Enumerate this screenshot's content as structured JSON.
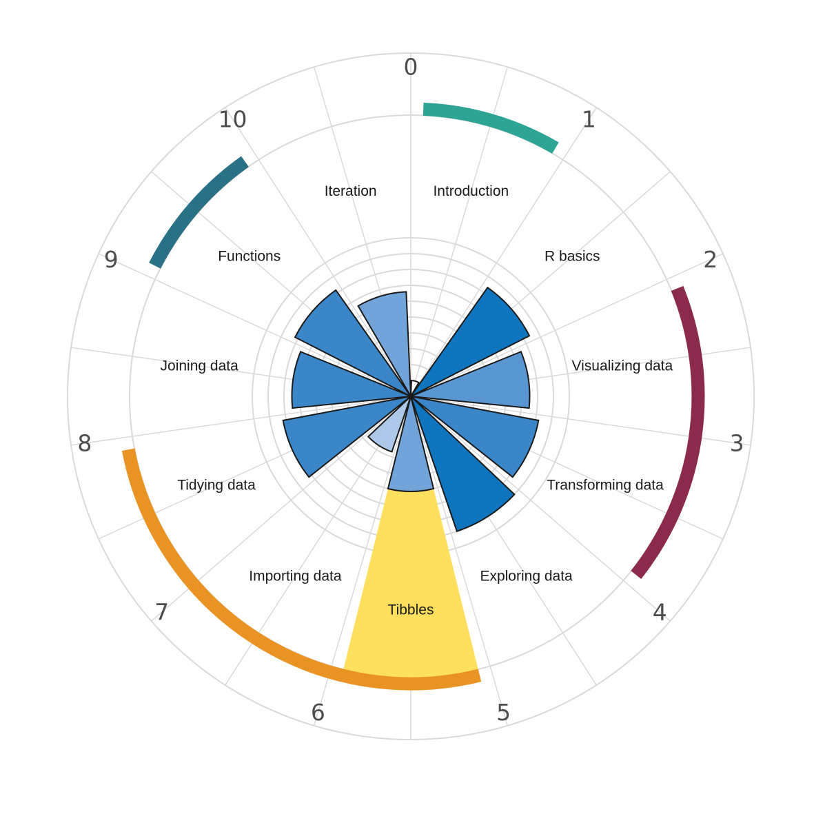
{
  "chart_data": {
    "type": "polar-bar",
    "title": "",
    "categories": [
      "Introduction",
      "R basics",
      "Visualizing data",
      "Transforming data",
      "Exploring data",
      "Tibbles",
      "Importing data",
      "Tidying data",
      "Joining data",
      "Functions",
      "Iteration"
    ],
    "values": [
      1.0,
      8.4,
      7.5,
      8.2,
      9.0,
      6.0,
      3.7,
      8.2,
      7.5,
      8.2,
      6.6
    ],
    "colors": [
      "#ffffff",
      "#0f75be",
      "#5a96d2",
      "#3b86c8",
      "#0f75be",
      "#73a4d9",
      "#adc8e9",
      "#3b86c8",
      "#3b86c8",
      "#3b86c8",
      "#73a4d9"
    ],
    "highlight": {
      "category": "Tibbles",
      "color": "#ffdf5e"
    },
    "radial_axis": {
      "min": 0,
      "max": 10,
      "grid_step": 1
    },
    "angular_ticks": [
      "0",
      "1",
      "2",
      "3",
      "4",
      "5",
      "6",
      "7",
      "8",
      "9",
      "10"
    ],
    "sections": [
      {
        "from": 0,
        "to": 1,
        "color": "#2ea495"
      },
      {
        "from": 2,
        "to": 4,
        "color": "#8b2a4c"
      },
      {
        "from": 5,
        "to": 8,
        "color": "#e89323"
      },
      {
        "from": 9,
        "to": 10,
        "color": "#2b7185"
      }
    ],
    "grid": true
  }
}
